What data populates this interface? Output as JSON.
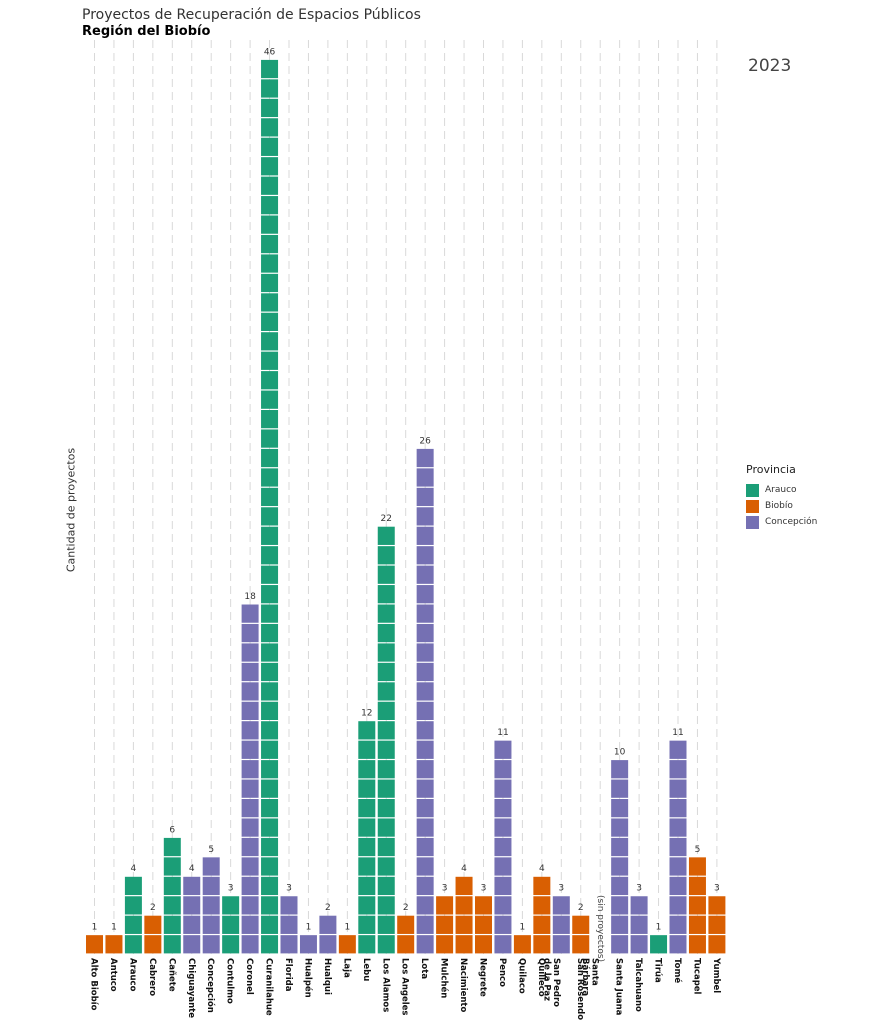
{
  "header": {
    "title": "Proyectos de Recuperación de Espacios Públicos",
    "subtitle": "Región del Biobío",
    "year": "2023"
  },
  "chart_data": {
    "type": "bar",
    "title": "Proyectos de Recuperación de Espacios Públicos",
    "subtitle": "Región del Biobío",
    "ylabel": "Cantidad de proyectos",
    "xlabel": "",
    "ylim": [
      0,
      46
    ],
    "grid": "vertical dashed",
    "legend": {
      "title": "Provincia",
      "placement": "right",
      "entries": [
        {
          "name": "Arauco",
          "color": "#1b9e77"
        },
        {
          "name": "Biobío",
          "color": "#d95f02"
        },
        {
          "name": "Concepción",
          "color": "#7570b3"
        }
      ]
    },
    "no_projects_label": "(sin proyectos)",
    "categories": [
      {
        "name": "Alto Biobío",
        "value": 1,
        "provincia": "Biobío"
      },
      {
        "name": "Antuco",
        "value": 1,
        "provincia": "Biobío"
      },
      {
        "name": "Arauco",
        "value": 4,
        "provincia": "Arauco"
      },
      {
        "name": "Cabrero",
        "value": 2,
        "provincia": "Biobío"
      },
      {
        "name": "Cañete",
        "value": 6,
        "provincia": "Arauco"
      },
      {
        "name": "Chiguayante",
        "value": 4,
        "provincia": "Concepción"
      },
      {
        "name": "Concepción",
        "value": 5,
        "provincia": "Concepción"
      },
      {
        "name": "Contulmo",
        "value": 3,
        "provincia": "Arauco"
      },
      {
        "name": "Coronel",
        "value": 18,
        "provincia": "Concepción"
      },
      {
        "name": "Curanilahue",
        "value": 46,
        "provincia": "Arauco"
      },
      {
        "name": "Florida",
        "value": 3,
        "provincia": "Concepción"
      },
      {
        "name": "Hualpén",
        "value": 1,
        "provincia": "Concepción"
      },
      {
        "name": "Hualqui",
        "value": 2,
        "provincia": "Concepción"
      },
      {
        "name": "Laja",
        "value": 1,
        "provincia": "Biobío"
      },
      {
        "name": "Lebu",
        "value": 12,
        "provincia": "Arauco"
      },
      {
        "name": "Los Alamos",
        "value": 22,
        "provincia": "Arauco"
      },
      {
        "name": "Los Angeles",
        "value": 2,
        "provincia": "Biobío"
      },
      {
        "name": "Lota",
        "value": 26,
        "provincia": "Concepción"
      },
      {
        "name": "Mulchén",
        "value": 3,
        "provincia": "Biobío"
      },
      {
        "name": "Nacimiento",
        "value": 4,
        "provincia": "Biobío"
      },
      {
        "name": "Negrete",
        "value": 3,
        "provincia": "Biobío"
      },
      {
        "name": "Penco",
        "value": 11,
        "provincia": "Concepción"
      },
      {
        "name": "Quilaco",
        "value": 1,
        "provincia": "Biobío"
      },
      {
        "name": "Quilleco",
        "value": 4,
        "provincia": "Biobío"
      },
      {
        "name": "San Pedro de la Paz",
        "value": 3,
        "provincia": "Concepción"
      },
      {
        "name": "San Rosendo",
        "value": 2,
        "provincia": "Biobío"
      },
      {
        "name": "Santa Bárbara",
        "value": 0,
        "provincia": "Biobío"
      },
      {
        "name": "Santa Juana",
        "value": 10,
        "provincia": "Concepción"
      },
      {
        "name": "Talcahuano",
        "value": 3,
        "provincia": "Concepción"
      },
      {
        "name": "Tirúa",
        "value": 1,
        "provincia": "Arauco"
      },
      {
        "name": "Tomé",
        "value": 11,
        "provincia": "Concepción"
      },
      {
        "name": "Tucapel",
        "value": 5,
        "provincia": "Biobío"
      },
      {
        "name": "Yumbel",
        "value": 3,
        "provincia": "Biobío"
      }
    ]
  }
}
